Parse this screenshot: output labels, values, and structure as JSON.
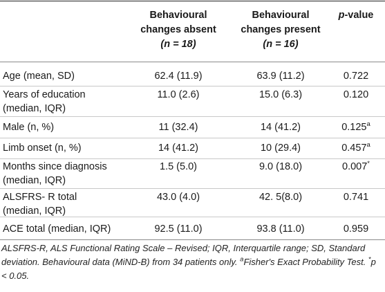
{
  "header": {
    "col1_line1": "Behavioural",
    "col1_line2": "changes absent",
    "col1_n": "(n = 18)",
    "col2_line1": "Behavioural",
    "col2_line2": "changes present",
    "col2_n": "(n = 16)",
    "col3_p": "p",
    "col3_rest": "-value"
  },
  "rows": [
    {
      "label1": "Age (mean, SD)",
      "label2": "",
      "absent": "62.4 (11.9)",
      "present": "63.9 (11.2)",
      "p": "0.722",
      "sup": ""
    },
    {
      "label1": "Years of education",
      "label2": "(median, IQR)",
      "absent": "11.0 (2.6)",
      "present": "15.0 (6.3)",
      "p": "0.120",
      "sup": ""
    },
    {
      "label1": "Male (n, %)",
      "label2": "",
      "absent": "11 (32.4)",
      "present": "14 (41.2)",
      "p": "0.125",
      "sup": "a"
    },
    {
      "label1": "Limb onset (n, %)",
      "label2": "",
      "absent": "14 (41.2)",
      "present": "10 (29.4)",
      "p": "0.457",
      "sup": "a"
    },
    {
      "label1": "Months since diagnosis",
      "label2": "(median, IQR)",
      "absent": "1.5 (5.0)",
      "present": "9.0 (18.0)",
      "p": "0.007",
      "sup": "*"
    },
    {
      "label1": "ALSFRS- R total",
      "label2": "(median, IQR)",
      "absent": "43.0 (4.0)",
      "present": "42. 5(8.0)",
      "p": "0.741",
      "sup": ""
    },
    {
      "label1": "ACE total (median, IQR)",
      "label2": "",
      "absent": "92.5 (11.0)",
      "present": "93.8 (11.0)",
      "p": "0.959",
      "sup": ""
    }
  ],
  "footnote": {
    "main": "ALSFRS-R, ALS Functional Rating Scale – Revised; IQR, Interquartile range; SD, Standard deviation. Behavioural data (MiND-B) from 34 patients only. ",
    "sup_a": "a",
    "fisher": "Fisher's Exact Probability Test. ",
    "star": "*",
    "pval": "p < 0.05."
  }
}
